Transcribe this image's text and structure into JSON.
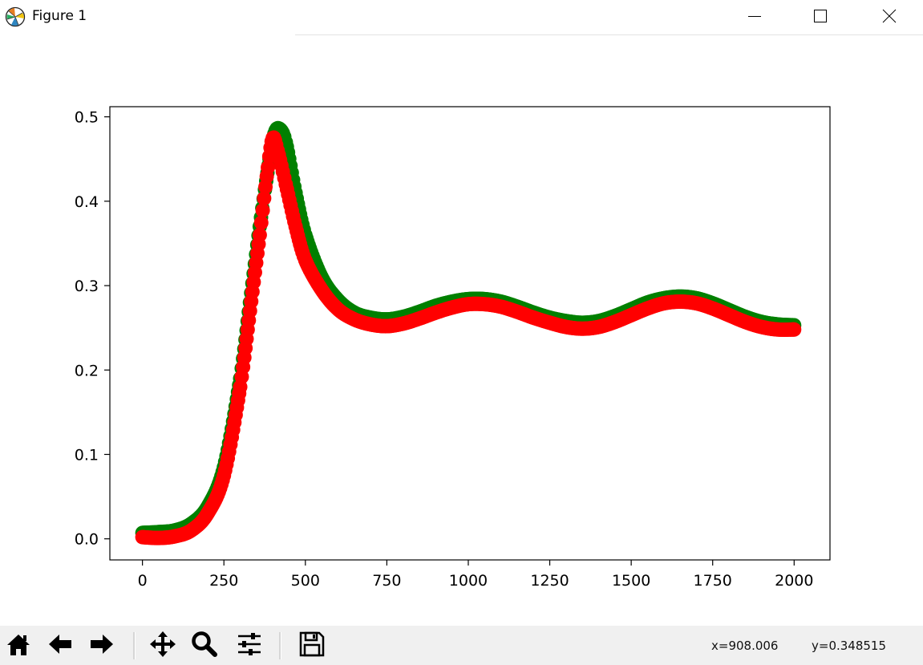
{
  "window": {
    "title": "Figure 1",
    "icon": "matplotlib-logo-icon",
    "controls": [
      "minimize-icon",
      "maximize-icon",
      "close-icon"
    ]
  },
  "chart_data": {
    "type": "scatter",
    "title": "",
    "xlabel": "",
    "ylabel": "",
    "xlim": [
      -100,
      2110
    ],
    "ylim": [
      -0.025,
      0.512
    ],
    "x_ticks": [
      0,
      250,
      500,
      750,
      1000,
      1250,
      1500,
      1750,
      2000
    ],
    "x_tick_labels": [
      "0",
      "250",
      "500",
      "750",
      "1000",
      "1250",
      "1500",
      "1750",
      "2000"
    ],
    "y_ticks": [
      0.0,
      0.1,
      0.2,
      0.3,
      0.4,
      0.5
    ],
    "y_tick_labels": [
      "0.0",
      "0.1",
      "0.2",
      "0.3",
      "0.4",
      "0.5"
    ],
    "grid": false,
    "legend": "none",
    "series": [
      {
        "color": "#008000",
        "points": [
          [
            0,
            0.007
          ],
          [
            50,
            0.008
          ],
          [
            100,
            0.01
          ],
          [
            150,
            0.018
          ],
          [
            200,
            0.038
          ],
          [
            250,
            0.085
          ],
          [
            300,
            0.19
          ],
          [
            330,
            0.28
          ],
          [
            360,
            0.37
          ],
          [
            390,
            0.45
          ],
          [
            405,
            0.48
          ],
          [
            420,
            0.486
          ],
          [
            440,
            0.47
          ],
          [
            470,
            0.41
          ],
          [
            500,
            0.36
          ],
          [
            550,
            0.31
          ],
          [
            600,
            0.283
          ],
          [
            650,
            0.268
          ],
          [
            700,
            0.262
          ],
          [
            750,
            0.26
          ],
          [
            800,
            0.263
          ],
          [
            850,
            0.269
          ],
          [
            900,
            0.276
          ],
          [
            950,
            0.281
          ],
          [
            1000,
            0.284
          ],
          [
            1050,
            0.284
          ],
          [
            1100,
            0.281
          ],
          [
            1150,
            0.275
          ],
          [
            1200,
            0.268
          ],
          [
            1250,
            0.262
          ],
          [
            1300,
            0.258
          ],
          [
            1350,
            0.256
          ],
          [
            1400,
            0.258
          ],
          [
            1450,
            0.264
          ],
          [
            1500,
            0.272
          ],
          [
            1550,
            0.28
          ],
          [
            1600,
            0.285
          ],
          [
            1650,
            0.287
          ],
          [
            1700,
            0.285
          ],
          [
            1750,
            0.279
          ],
          [
            1800,
            0.271
          ],
          [
            1850,
            0.263
          ],
          [
            1900,
            0.257
          ],
          [
            1950,
            0.254
          ],
          [
            2000,
            0.253
          ]
        ]
      },
      {
        "color": "#ff0000",
        "points": [
          [
            0,
            0.002
          ],
          [
            50,
            0.001
          ],
          [
            100,
            0.003
          ],
          [
            150,
            0.01
          ],
          [
            200,
            0.03
          ],
          [
            250,
            0.075
          ],
          [
            300,
            0.18
          ],
          [
            330,
            0.27
          ],
          [
            360,
            0.36
          ],
          [
            385,
            0.44
          ],
          [
            400,
            0.475
          ],
          [
            415,
            0.46
          ],
          [
            440,
            0.42
          ],
          [
            470,
            0.37
          ],
          [
            500,
            0.33
          ],
          [
            550,
            0.295
          ],
          [
            600,
            0.272
          ],
          [
            650,
            0.26
          ],
          [
            700,
            0.254
          ],
          [
            750,
            0.252
          ],
          [
            800,
            0.255
          ],
          [
            850,
            0.261
          ],
          [
            900,
            0.268
          ],
          [
            950,
            0.274
          ],
          [
            1000,
            0.278
          ],
          [
            1050,
            0.278
          ],
          [
            1100,
            0.275
          ],
          [
            1150,
            0.269
          ],
          [
            1200,
            0.262
          ],
          [
            1250,
            0.256
          ],
          [
            1300,
            0.251
          ],
          [
            1350,
            0.249
          ],
          [
            1400,
            0.251
          ],
          [
            1450,
            0.257
          ],
          [
            1500,
            0.265
          ],
          [
            1550,
            0.273
          ],
          [
            1600,
            0.279
          ],
          [
            1650,
            0.281
          ],
          [
            1700,
            0.279
          ],
          [
            1750,
            0.273
          ],
          [
            1800,
            0.265
          ],
          [
            1850,
            0.257
          ],
          [
            1900,
            0.251
          ],
          [
            1950,
            0.248
          ],
          [
            2000,
            0.248
          ]
        ]
      }
    ]
  },
  "toolbar": {
    "buttons": [
      {
        "icon": "home-icon"
      },
      {
        "icon": "back-arrow-icon"
      },
      {
        "icon": "forward-arrow-icon"
      },
      {
        "icon": "pan-icon"
      },
      {
        "icon": "zoom-icon"
      },
      {
        "icon": "configure-subplots-icon"
      },
      {
        "icon": "save-icon"
      }
    ],
    "x_readout": "x=908.006",
    "y_readout": "y=0.348515"
  }
}
